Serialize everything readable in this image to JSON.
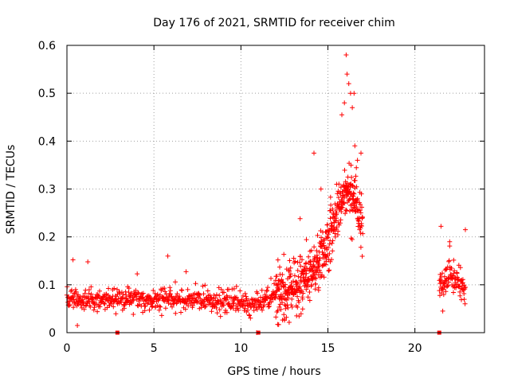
{
  "chart_data": {
    "type": "scatter",
    "title": "Day 176 of 2021, SRMTID for receiver chim",
    "xlabel": "GPS time / hours",
    "ylabel": "SRMTID / TECUs",
    "xlim": [
      0,
      24
    ],
    "ylim": [
      0,
      0.6
    ],
    "x_ticks": [
      0,
      5,
      10,
      15,
      20
    ],
    "x_tick_labels": [
      "0",
      "5",
      "10",
      "15",
      "20"
    ],
    "y_ticks": [
      0,
      0.1,
      0.2,
      0.3,
      0.4,
      0.5,
      0.6
    ],
    "y_tick_labels": [
      "0",
      "0.1",
      "0.2",
      "0.3",
      "0.4",
      "0.5",
      "0.6"
    ],
    "grid": true,
    "marker": "plus",
    "color": "#ff0000",
    "series": [
      {
        "name": "SRMTID",
        "segments": [
          {
            "x_start": 0.0,
            "x_end": 12.0,
            "step": 0.02,
            "trend": [
              [
                0.0,
                0.068
              ],
              [
                3.0,
                0.07
              ],
              [
                6.0,
                0.072
              ],
              [
                9.0,
                0.065
              ],
              [
                10.5,
                0.055
              ],
              [
                12.0,
                0.075
              ]
            ],
            "spread": 0.022
          },
          {
            "x_start": 12.0,
            "x_end": 17.0,
            "step": 0.01,
            "trend": [
              [
                12.0,
                0.075
              ],
              [
                13.0,
                0.09
              ],
              [
                14.0,
                0.12
              ],
              [
                14.5,
                0.15
              ],
              [
                15.0,
                0.19
              ],
              [
                15.5,
                0.25
              ],
              [
                16.0,
                0.3
              ],
              [
                16.5,
                0.28
              ],
              [
                17.0,
                0.22
              ]
            ],
            "spread": 0.055
          },
          {
            "x_start": 21.4,
            "x_end": 22.9,
            "step": 0.015,
            "trend": [
              [
                21.4,
                0.1
              ],
              [
                22.0,
                0.13
              ],
              [
                22.9,
                0.09
              ]
            ],
            "spread": 0.03
          }
        ],
        "notable_points": [
          {
            "x": 0.35,
            "y": 0.152
          },
          {
            "x": 1.2,
            "y": 0.148
          },
          {
            "x": 5.8,
            "y": 0.16
          },
          {
            "x": 14.2,
            "y": 0.375
          },
          {
            "x": 14.6,
            "y": 0.3
          },
          {
            "x": 15.5,
            "y": 0.31
          },
          {
            "x": 15.8,
            "y": 0.455
          },
          {
            "x": 15.95,
            "y": 0.48
          },
          {
            "x": 16.05,
            "y": 0.58
          },
          {
            "x": 16.1,
            "y": 0.54
          },
          {
            "x": 16.2,
            "y": 0.52
          },
          {
            "x": 16.3,
            "y": 0.5
          },
          {
            "x": 16.5,
            "y": 0.5
          },
          {
            "x": 16.4,
            "y": 0.47
          },
          {
            "x": 16.55,
            "y": 0.39
          },
          {
            "x": 16.9,
            "y": 0.375
          },
          {
            "x": 16.7,
            "y": 0.36
          },
          {
            "x": 13.4,
            "y": 0.238
          },
          {
            "x": 21.5,
            "y": 0.222
          },
          {
            "x": 22.9,
            "y": 0.215
          },
          {
            "x": 22.0,
            "y": 0.19
          },
          {
            "x": 21.6,
            "y": 0.045
          },
          {
            "x": 0.6,
            "y": 0.015
          },
          {
            "x": 10.9,
            "y": 0.0
          }
        ],
        "baseline_markers_x": [
          2.9,
          11.0,
          21.4
        ]
      }
    ]
  }
}
